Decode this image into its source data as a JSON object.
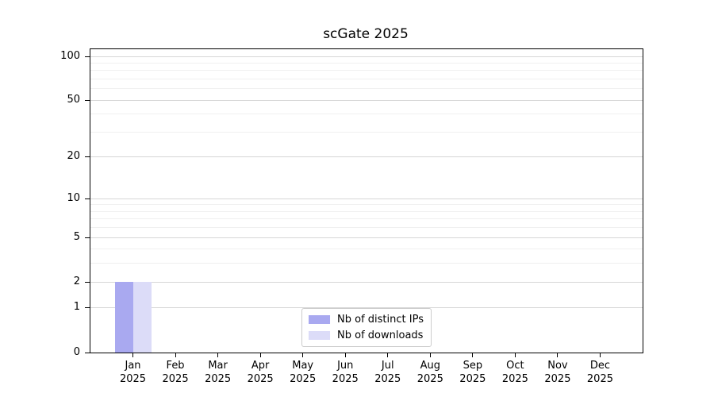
{
  "title": "scGate 2025",
  "chart_data": {
    "type": "bar",
    "title": "scGate 2025",
    "xlabel": "",
    "ylabel": "",
    "categories": [
      "Jan",
      "Feb",
      "Mar",
      "Apr",
      "May",
      "Jun",
      "Jul",
      "Aug",
      "Sep",
      "Oct",
      "Nov",
      "Dec"
    ],
    "category_year": "2025",
    "series": [
      {
        "name": "Nb of distinct IPs",
        "color": "#a9a9f0",
        "values": [
          2,
          0,
          0,
          0,
          0,
          0,
          0,
          0,
          0,
          0,
          0,
          0
        ]
      },
      {
        "name": "Nb of downloads",
        "color": "#dcdcf8",
        "values": [
          2,
          0,
          0,
          0,
          0,
          0,
          0,
          0,
          0,
          0,
          0,
          0
        ]
      }
    ],
    "y_axis": {
      "scale": "log1p",
      "major_ticks": [
        0,
        1,
        2,
        5,
        10,
        20,
        50,
        100
      ],
      "minor_gridlines": [
        3,
        4,
        6,
        7,
        8,
        9,
        30,
        40,
        60,
        70,
        80,
        90
      ],
      "top_value": 112
    },
    "grid": "horizontal",
    "legend_position": "lower center",
    "colors": {
      "major_grid": "#d6d6d6",
      "minor_grid": "#f0f0f0",
      "spine": "#000000",
      "legend_border": "#cccccc"
    }
  }
}
